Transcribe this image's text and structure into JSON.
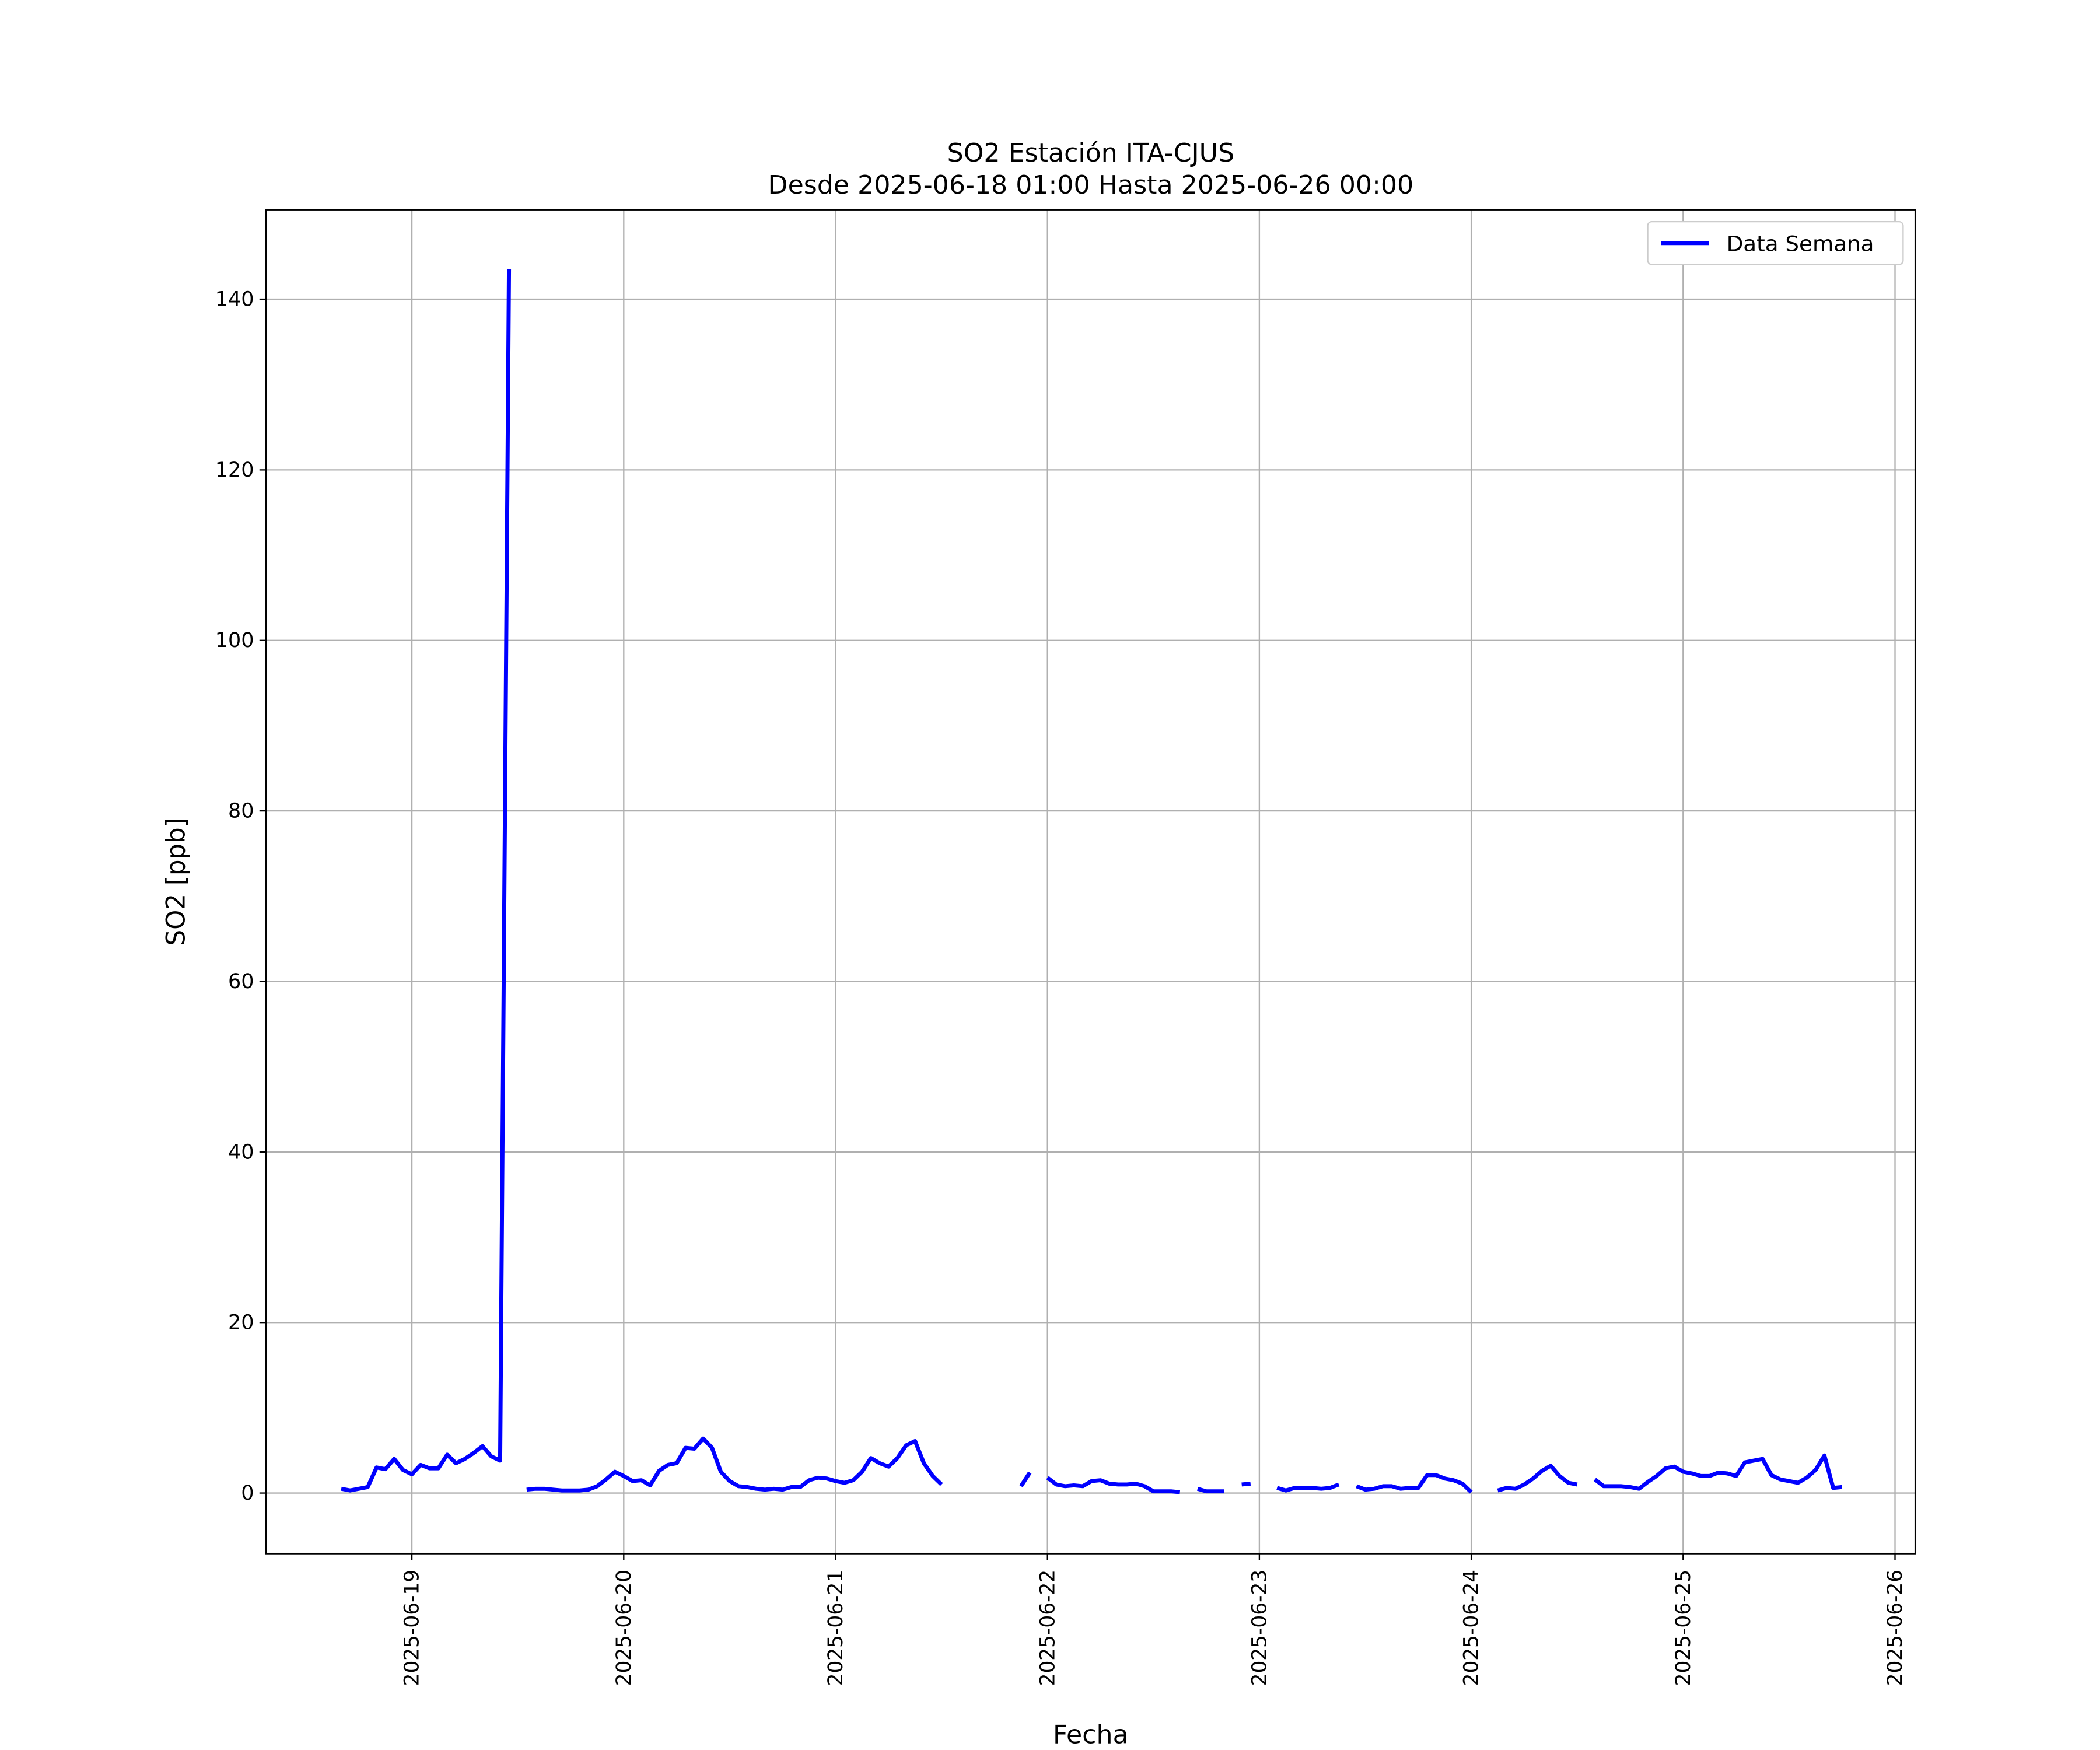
{
  "chart_data": {
    "type": "line",
    "title": "SO2 Estación ITA-CJUS",
    "subtitle": "Desde 2025-06-18 01:00 Hasta 2025-06-26 00:00",
    "x_label": "Fecha",
    "y_label": "SO2 [ppb]",
    "x": [
      "2025-06-18 16:00",
      "2025-06-18 17:00",
      "2025-06-18 18:00",
      "2025-06-18 19:00",
      "2025-06-18 20:00",
      "2025-06-18 21:00",
      "2025-06-18 22:00",
      "2025-06-18 23:00",
      "2025-06-19 00:00",
      "2025-06-19 01:00",
      "2025-06-19 02:00",
      "2025-06-19 03:00",
      "2025-06-19 04:00",
      "2025-06-19 05:00",
      "2025-06-19 06:00",
      "2025-06-19 07:00",
      "2025-06-19 08:00",
      "2025-06-19 09:00",
      "2025-06-19 10:00",
      "2025-06-19 11:00",
      "2025-06-19 12:00",
      "2025-06-19 13:00",
      "2025-06-19 14:00",
      "2025-06-19 15:00",
      "2025-06-19 16:00",
      "2025-06-19 17:00",
      "2025-06-19 18:00",
      "2025-06-19 19:00",
      "2025-06-19 20:00",
      "2025-06-19 21:00",
      "2025-06-19 22:00",
      "2025-06-19 23:00",
      "2025-06-20 00:00",
      "2025-06-20 01:00",
      "2025-06-20 02:00",
      "2025-06-20 03:00",
      "2025-06-20 04:00",
      "2025-06-20 05:00",
      "2025-06-20 06:00",
      "2025-06-20 07:00",
      "2025-06-20 08:00",
      "2025-06-20 09:00",
      "2025-06-20 10:00",
      "2025-06-20 11:00",
      "2025-06-20 12:00",
      "2025-06-20 13:00",
      "2025-06-20 14:00",
      "2025-06-20 15:00",
      "2025-06-20 16:00",
      "2025-06-20 17:00",
      "2025-06-20 18:00",
      "2025-06-20 19:00",
      "2025-06-20 20:00",
      "2025-06-20 21:00",
      "2025-06-20 22:00",
      "2025-06-20 23:00",
      "2025-06-21 00:00",
      "2025-06-21 01:00",
      "2025-06-21 02:00",
      "2025-06-21 03:00",
      "2025-06-21 04:00",
      "2025-06-21 05:00",
      "2025-06-21 06:00",
      "2025-06-21 07:00",
      "2025-06-21 08:00",
      "2025-06-21 09:00",
      "2025-06-21 10:00",
      "2025-06-21 11:00",
      "2025-06-21 12:00",
      "2025-06-21 13:00",
      "2025-06-21 14:00",
      "2025-06-21 15:00",
      "2025-06-21 16:00",
      "2025-06-21 17:00",
      "2025-06-21 18:00",
      "2025-06-21 19:00",
      "2025-06-21 20:00",
      "2025-06-21 21:00",
      "2025-06-21 22:00",
      "2025-06-21 23:00",
      "2025-06-22 00:00",
      "2025-06-22 01:00",
      "2025-06-22 02:00",
      "2025-06-22 03:00",
      "2025-06-22 04:00",
      "2025-06-22 05:00",
      "2025-06-22 06:00",
      "2025-06-22 07:00",
      "2025-06-22 08:00",
      "2025-06-22 09:00",
      "2025-06-22 10:00",
      "2025-06-22 11:00",
      "2025-06-22 12:00",
      "2025-06-22 13:00",
      "2025-06-22 14:00",
      "2025-06-22 15:00",
      "2025-06-22 16:00",
      "2025-06-22 17:00",
      "2025-06-22 18:00",
      "2025-06-22 19:00",
      "2025-06-22 20:00",
      "2025-06-22 21:00",
      "2025-06-22 22:00",
      "2025-06-22 23:00",
      "2025-06-23 00:00",
      "2025-06-23 01:00",
      "2025-06-23 02:00",
      "2025-06-23 03:00",
      "2025-06-23 04:00",
      "2025-06-23 05:00",
      "2025-06-23 06:00",
      "2025-06-23 07:00",
      "2025-06-23 08:00",
      "2025-06-23 09:00",
      "2025-06-23 10:00",
      "2025-06-23 11:00",
      "2025-06-23 12:00",
      "2025-06-23 13:00",
      "2025-06-23 14:00",
      "2025-06-23 15:00",
      "2025-06-23 16:00",
      "2025-06-23 17:00",
      "2025-06-23 18:00",
      "2025-06-23 19:00",
      "2025-06-23 20:00",
      "2025-06-23 21:00",
      "2025-06-23 22:00",
      "2025-06-23 23:00",
      "2025-06-24 00:00",
      "2025-06-24 01:00",
      "2025-06-24 02:00",
      "2025-06-24 03:00",
      "2025-06-24 04:00",
      "2025-06-24 05:00",
      "2025-06-24 06:00",
      "2025-06-24 07:00",
      "2025-06-24 08:00",
      "2025-06-24 09:00",
      "2025-06-24 10:00",
      "2025-06-24 11:00",
      "2025-06-24 12:00",
      "2025-06-24 13:00",
      "2025-06-24 14:00",
      "2025-06-24 15:00",
      "2025-06-24 16:00",
      "2025-06-24 17:00",
      "2025-06-24 18:00",
      "2025-06-24 19:00",
      "2025-06-24 20:00",
      "2025-06-24 21:00",
      "2025-06-24 22:00",
      "2025-06-24 23:00",
      "2025-06-25 00:00",
      "2025-06-25 01:00",
      "2025-06-25 02:00",
      "2025-06-25 03:00",
      "2025-06-25 04:00",
      "2025-06-25 05:00",
      "2025-06-25 06:00",
      "2025-06-25 07:00",
      "2025-06-25 08:00",
      "2025-06-25 09:00",
      "2025-06-25 10:00",
      "2025-06-25 11:00",
      "2025-06-25 12:00",
      "2025-06-25 13:00",
      "2025-06-25 14:00",
      "2025-06-25 15:00",
      "2025-06-25 16:00",
      "2025-06-25 17:00",
      "2025-06-25 18:00"
    ],
    "series": [
      {
        "name": "Data Semana",
        "color": "#0000ff",
        "values": [
          0.5,
          0.3,
          0.5,
          0.7,
          3.0,
          2.8,
          4.0,
          2.7,
          2.2,
          3.3,
          2.9,
          2.9,
          4.5,
          3.5,
          4.0,
          4.7,
          5.5,
          4.3,
          3.8,
          143.5,
          null,
          0.4,
          0.5,
          0.5,
          0.4,
          0.3,
          0.3,
          0.3,
          0.4,
          0.8,
          1.6,
          2.5,
          2.0,
          1.4,
          1.5,
          0.9,
          2.6,
          3.3,
          3.5,
          5.3,
          5.2,
          6.4,
          5.3,
          2.5,
          1.4,
          0.8,
          0.7,
          0.5,
          0.4,
          0.5,
          0.4,
          0.7,
          0.7,
          1.5,
          1.8,
          1.7,
          1.4,
          1.2,
          1.5,
          2.5,
          4.1,
          3.5,
          3.1,
          4.1,
          5.6,
          6.1,
          3.5,
          2.0,
          1.0,
          null,
          null,
          null,
          null,
          null,
          null,
          null,
          null,
          0.8,
          2.4,
          null,
          1.8,
          1.0,
          0.8,
          0.9,
          0.8,
          1.4,
          1.5,
          1.1,
          1.0,
          1.0,
          1.1,
          0.8,
          0.2,
          0.2,
          0.2,
          0.1,
          null,
          0.5,
          0.2,
          0.2,
          0.2,
          null,
          1.0,
          1.1,
          null,
          null,
          0.6,
          0.3,
          0.6,
          0.6,
          0.6,
          0.5,
          0.6,
          1.0,
          null,
          0.8,
          0.4,
          0.5,
          0.8,
          0.8,
          0.5,
          0.6,
          0.6,
          2.1,
          2.1,
          1.7,
          1.5,
          1.1,
          0.1,
          null,
          null,
          0.3,
          0.6,
          0.5,
          1.0,
          1.7,
          2.6,
          3.2,
          2.0,
          1.2,
          1.0,
          null,
          1.6,
          0.8,
          0.8,
          0.8,
          0.7,
          0.5,
          1.3,
          2.0,
          2.9,
          3.1,
          2.5,
          2.3,
          2.0,
          2.0,
          2.4,
          2.3,
          2.0,
          3.6,
          3.8,
          4.0,
          2.1,
          1.6,
          1.4,
          1.2,
          1.8,
          2.7,
          4.4,
          0.6,
          0.7
        ]
      }
    ],
    "xlim": [
      "2025-06-18 07:30",
      "2025-06-26 02:18"
    ],
    "xticks": [
      "2025-06-19",
      "2025-06-20",
      "2025-06-21",
      "2025-06-22",
      "2025-06-23",
      "2025-06-24",
      "2025-06-25",
      "2025-06-26"
    ],
    "ylim": [
      -7.1,
      150.5
    ],
    "yticks": [
      0,
      20,
      40,
      60,
      80,
      100,
      120,
      140
    ],
    "grid": true,
    "legend": "upper right"
  }
}
